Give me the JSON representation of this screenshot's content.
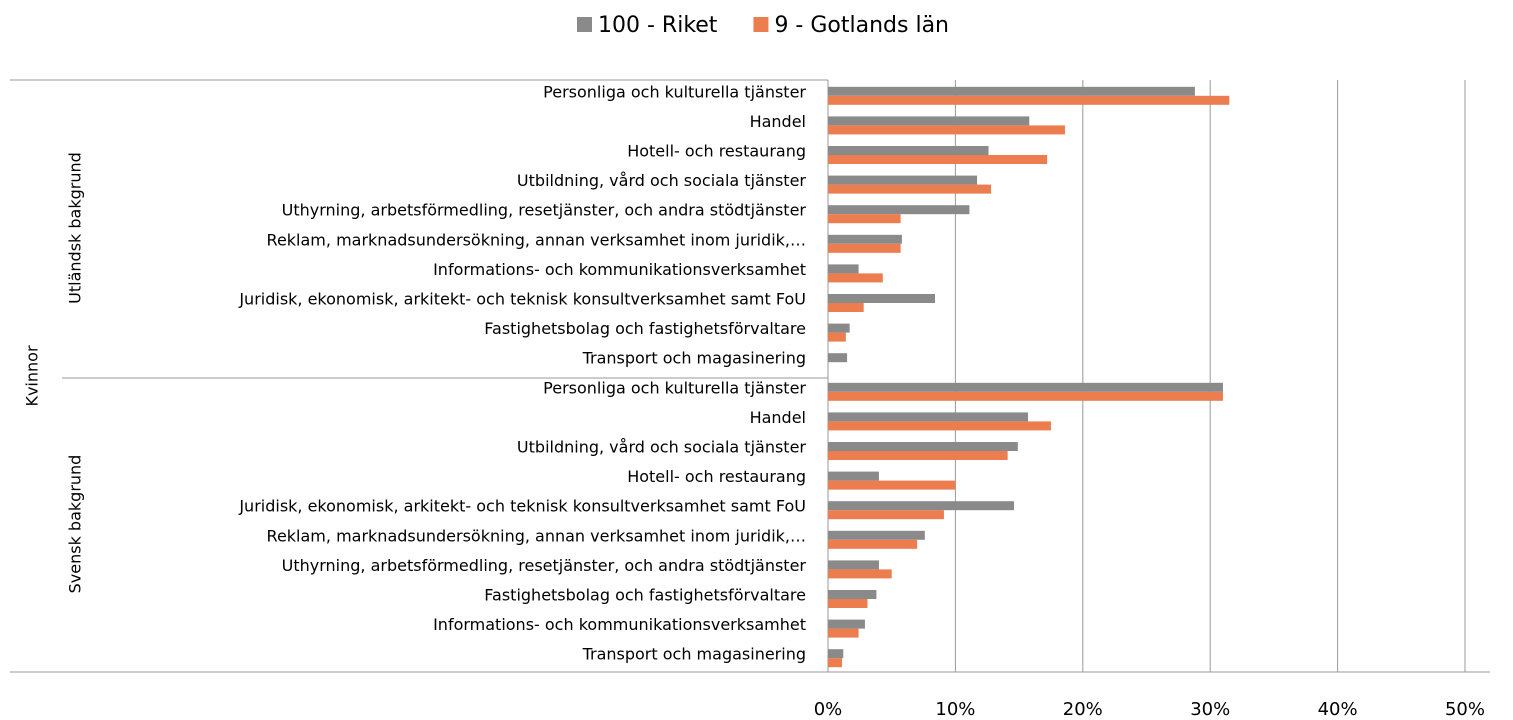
{
  "chart_data": {
    "type": "bar",
    "orientation": "horizontal",
    "outer_group": "Kvinnor",
    "groups": [
      {
        "name": "Utländsk bakgrund",
        "categories": [
          "Personliga och kulturella tjänster",
          "Handel",
          "Hotell- och restaurang",
          "Utbildning, vård och sociala tjänster",
          "Uthyrning, arbetsförmedling, resetjänster, och andra stödtjänster",
          "Reklam, marknadsundersökning, annan verksamhet inom juridik,…",
          "Informations- och kommunikationsverksamhet",
          "Juridisk, ekonomisk, arkitekt- och teknisk konsultverksamhet samt FoU",
          "Fastighetsbolag och fastighetsförvaltare",
          "Transport och magasinering"
        ]
      },
      {
        "name": "Svensk bakgrund",
        "categories": [
          "Personliga och kulturella tjänster",
          "Handel",
          "Utbildning, vård och sociala tjänster",
          "Hotell- och restaurang",
          "Juridisk, ekonomisk, arkitekt- och teknisk konsultverksamhet samt FoU",
          "Reklam, marknadsundersökning, annan verksamhet inom juridik,…",
          "Uthyrning, arbetsförmedling, resetjänster, och andra stödtjänster",
          "Fastighetsbolag och fastighetsförvaltare",
          "Informations- och kommunikationsverksamhet",
          "Transport och magasinering"
        ]
      }
    ],
    "series": [
      {
        "name": "100 - Riket",
        "color": "#8a8a8a",
        "values": [
          [
            28.8,
            15.8,
            12.6,
            11.7,
            11.1,
            5.8,
            2.4,
            8.4,
            1.7,
            1.5
          ],
          [
            31.0,
            15.7,
            14.9,
            4.0,
            14.6,
            7.6,
            4.0,
            3.8,
            2.9,
            1.2
          ]
        ]
      },
      {
        "name": "9 - Gotlands län",
        "color": "#eb7d4e",
        "values": [
          [
            31.5,
            18.6,
            17.2,
            12.8,
            5.7,
            5.7,
            4.3,
            2.8,
            1.4,
            0
          ],
          [
            31.0,
            17.5,
            14.1,
            10.0,
            9.1,
            7.0,
            5.0,
            3.1,
            2.4,
            1.1
          ]
        ]
      }
    ],
    "xlim": [
      0,
      50
    ],
    "xticks": [
      {
        "value": 0,
        "label": "0%"
      },
      {
        "value": 10,
        "label": "10%"
      },
      {
        "value": 20,
        "label": "20%"
      },
      {
        "value": 30,
        "label": "30%"
      },
      {
        "value": 40,
        "label": "40%"
      },
      {
        "value": 50,
        "label": "50%"
      }
    ],
    "grid": true,
    "legend": "top"
  }
}
